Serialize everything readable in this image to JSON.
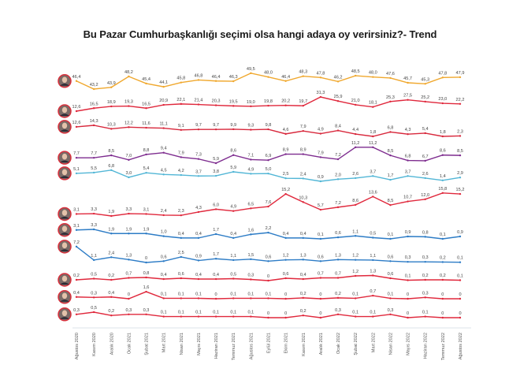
{
  "chart_data": {
    "type": "line",
    "title": "Bu Pazar Cumhurbaşkanlığı seçimi olsa hangi adaya oy verirsiniz?- Trend",
    "xlabel": "",
    "ylabel": "",
    "grid": false,
    "legend": "candidate photos at left of each line",
    "categories": [
      "Ağustos 2020",
      "Kasım 2020",
      "Aralık 2020",
      "Ocak 2021",
      "Şubat 2021",
      "Mart 2021",
      "Nisan 2021",
      "Mayıs 2021",
      "Haziran 2021",
      "Temmuz 2021",
      "Ağustos 2021",
      "Eylül 2021",
      "Ekim 2021",
      "Kasım 2021",
      "Aralık 2021",
      "Ocak 2022",
      "Şubat 2022",
      "Mart 2022",
      "Nisan 2022",
      "Mayıs 2022",
      "Haziran 2022",
      "Temmuz 2022",
      "Ağustos 2022"
    ],
    "series": [
      {
        "color": "#f0a82e",
        "values": [
          46.4,
          43.2,
          43.9,
          48.2,
          45.4,
          44.1,
          45.8,
          46.8,
          46.4,
          46.3,
          49.5,
          48.0,
          46.4,
          48.3,
          47.8,
          46.2,
          48.5,
          48.0,
          47.6,
          45.7,
          45.3,
          47.8,
          47.9
        ]
      },
      {
        "color": "#e0283c",
        "values": [
          12.6,
          16.5,
          18.9,
          19.3,
          16.5,
          20.9,
          22.1,
          21.4,
          20.3,
          19.5,
          19.0,
          19.8,
          20.2,
          19.7,
          31.3,
          25.9,
          21.0,
          18.1,
          25.3,
          27.5,
          25.2,
          23.0,
          22.2
        ]
      },
      {
        "color": "#d8283c",
        "values": [
          12.6,
          14.3,
          10.3,
          12.2,
          11.6,
          11.1,
          9.1,
          9.7,
          9.7,
          9.9,
          9.3,
          9.8,
          4.6,
          7.9,
          4.9,
          8.4,
          4.4,
          1.8,
          6.8,
          4.3,
          5.4,
          1.8,
          2.3
        ]
      },
      {
        "color": "#7e2d8f",
        "values": [
          7.7,
          7.7,
          8.5,
          7.0,
          8.8,
          9.4,
          7.9,
          7.3,
          5.9,
          8.6,
          7.1,
          6.9,
          8.9,
          8.9,
          7.9,
          7.2,
          11.2,
          11.2,
          8.5,
          6.8,
          6.7,
          8.6,
          8.5
        ]
      },
      {
        "color": "#52b6d6",
        "values": [
          5.1,
          5.5,
          6.8,
          3.0,
          5.4,
          4.5,
          4.2,
          3.7,
          3.8,
          5.9,
          4.9,
          5.0,
          2.5,
          2.4,
          0.9,
          2.0,
          2.6,
          3.7,
          1.7,
          3.7,
          2.6,
          1.4,
          2.9
        ]
      },
      {
        "color": "#e0283c",
        "values": [
          3.1,
          3.3,
          1.9,
          3.3,
          3.1,
          2.4,
          2.3,
          4.3,
          6.0,
          4.9,
          6.5,
          7.6,
          15.2,
          10.3,
          5.7,
          7.2,
          8.6,
          13.6,
          8.5,
          10.7,
          12.0,
          15.8,
          15.2
        ]
      },
      {
        "color": "#2d7cc6",
        "values": [
          3.1,
          3.3,
          1.9,
          1.9,
          1.9,
          1.0,
          0.4,
          0.4,
          1.7,
          0.4,
          1.6,
          2.2,
          0.4,
          0.4,
          0.1,
          0.6,
          1.1,
          0.5,
          0.1,
          0.9,
          0.8,
          0.1,
          0.9
        ]
      },
      {
        "color": "#2d7cc6",
        "values": [
          7.2,
          1.1,
          2.4,
          1.3,
          0,
          0.6,
          2.5,
          0.9,
          1.7,
          1.1,
          1.5,
          0.6,
          1.2,
          1.3,
          0.6,
          1.3,
          1.2,
          1.1,
          0.6,
          0.3,
          0.3,
          0.2,
          0.1
        ]
      },
      {
        "color": "#e0283c",
        "values": [
          0.2,
          0.5,
          0.2,
          0.7,
          0.8,
          0.4,
          0.6,
          0.4,
          0.4,
          0.5,
          0.3,
          0,
          0.6,
          0.4,
          0.7,
          0.7,
          1.2,
          1.3,
          0.6,
          0.1,
          0.2,
          0.2,
          0.1
        ]
      },
      {
        "color": "#e0283c",
        "values": [
          0.4,
          0.3,
          0.4,
          0,
          1.6,
          0.1,
          0.1,
          0.1,
          0,
          0.1,
          0.1,
          0.1,
          0,
          0.2,
          0,
          0.2,
          0.1,
          0.7,
          0.1,
          0,
          0.3,
          0,
          0
        ]
      },
      {
        "color": "#e0283c",
        "values": [
          0.3,
          0.5,
          0.2,
          0.3,
          0.3,
          0.1,
          0.1,
          0.1,
          0.1,
          0.1,
          0.1,
          0,
          0,
          0.2,
          0,
          0.3,
          0.1,
          0.1,
          0.3,
          0,
          0.1,
          0,
          0
        ]
      }
    ]
  }
}
